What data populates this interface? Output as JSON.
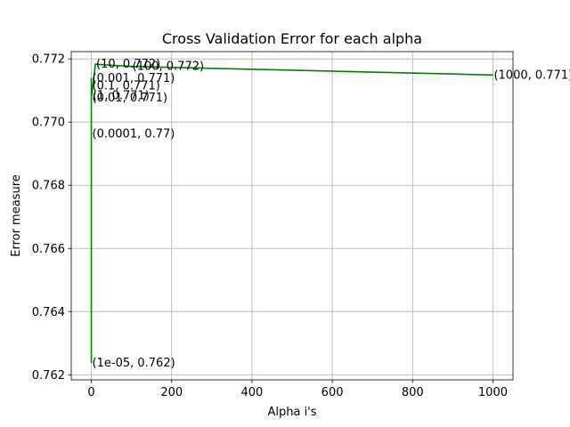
{
  "chart_data": {
    "type": "line",
    "title": "Cross Validation Error for each alpha",
    "xlabel": "Alpha i's",
    "ylabel": "Error measure",
    "xlim": [
      -50,
      1050
    ],
    "ylim": [
      0.76184,
      0.77223
    ],
    "x_ticks": [
      0,
      200,
      400,
      600,
      800,
      1000
    ],
    "x_tick_labels": [
      "0",
      "200",
      "400",
      "600",
      "800",
      "1000"
    ],
    "y_ticks": [
      0.762,
      0.764,
      0.766,
      0.768,
      0.77,
      0.772
    ],
    "y_tick_labels": [
      "0.762",
      "0.764",
      "0.766",
      "0.768",
      "0.770",
      "0.772"
    ],
    "grid": true,
    "series": [
      {
        "color": "#008000",
        "x": [
          1e-05,
          0.0001,
          0.001,
          0.01,
          0.1,
          1,
          10,
          100,
          1000
        ],
        "y": [
          0.76238,
          0.76962,
          0.77138,
          0.77076,
          0.77114,
          0.77084,
          0.77183,
          0.77176,
          0.77149
        ]
      }
    ],
    "annotations": [
      {
        "text": "(1e-05, 0.762)",
        "x": 1e-05,
        "y": 0.76238
      },
      {
        "text": "(0.0001, 0.77)",
        "x": 0.0001,
        "y": 0.76962
      },
      {
        "text": "(0.001, 0.771)",
        "x": 0.001,
        "y": 0.77138
      },
      {
        "text": "(0.01, 0.771)",
        "x": 0.01,
        "y": 0.77076
      },
      {
        "text": "(0.1, 0.771)",
        "x": 0.1,
        "y": 0.77114
      },
      {
        "text": "(1, 0.771)",
        "x": 1,
        "y": 0.77084
      },
      {
        "text": "(10, 0.772)",
        "x": 10,
        "y": 0.77183
      },
      {
        "text": "(100, 0.772)",
        "x": 100,
        "y": 0.77176
      },
      {
        "text": "(1000, 0.771)",
        "x": 1000,
        "y": 0.77149
      }
    ]
  }
}
